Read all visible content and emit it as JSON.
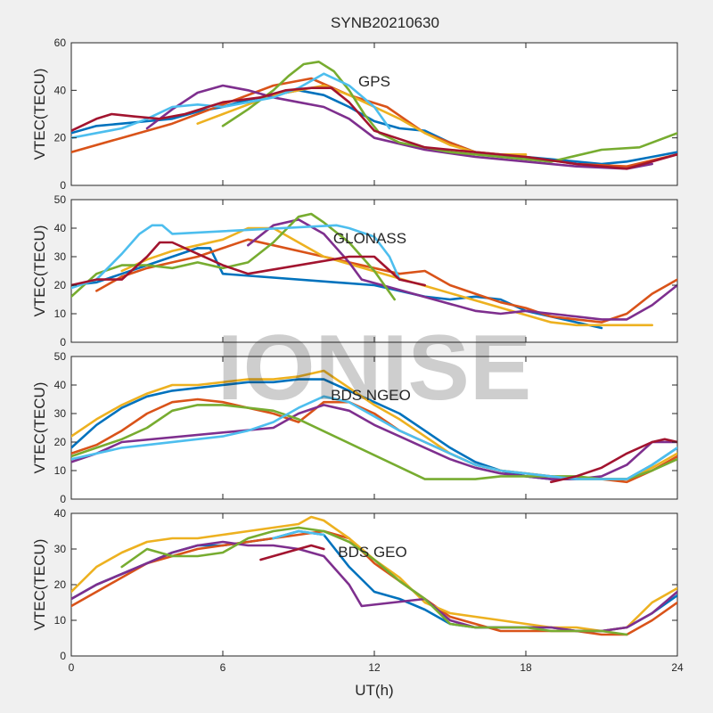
{
  "title": "SYNB20210630",
  "watermark": "IONISE",
  "xlabel": "UT(h)",
  "xticks": [
    "0",
    "6",
    "12",
    "18",
    "24"
  ],
  "colors": [
    "#0072BD",
    "#D95319",
    "#EDB120",
    "#7E2F8E",
    "#77AC30",
    "#4DBEEE",
    "#A2142F"
  ],
  "chart_data": [
    {
      "type": "line",
      "label": "GPS",
      "ylabel": "VTEC(TECU)",
      "xlim": [
        0,
        24
      ],
      "ylim": [
        0,
        60
      ],
      "yticks": [
        "0",
        "20",
        "40",
        "60"
      ],
      "grid": false,
      "series": [
        {
          "x": [
            0,
            1,
            2,
            3,
            4,
            5,
            6,
            7,
            8,
            9,
            10,
            11,
            12,
            13,
            14,
            15,
            16,
            17,
            18,
            19,
            20,
            21,
            22,
            23,
            24
          ],
          "y": [
            22,
            25,
            26,
            27,
            28,
            31,
            33,
            36,
            38,
            40,
            38,
            33,
            27,
            24,
            23,
            18,
            14,
            12,
            12,
            11,
            10,
            9,
            10,
            12,
            14
          ]
        },
        {
          "x": [
            0,
            2,
            4,
            6,
            8,
            9.5,
            11,
            12.5,
            14,
            16,
            18,
            20,
            22,
            24
          ],
          "y": [
            14,
            20,
            26,
            34,
            42,
            45,
            38,
            33,
            22,
            14,
            12,
            9,
            8,
            13
          ]
        },
        {
          "x": [
            5,
            6,
            7,
            8,
            9,
            10,
            11,
            12,
            13,
            14,
            15,
            16,
            17,
            18
          ],
          "y": [
            26,
            30,
            34,
            38,
            40,
            42,
            38,
            33,
            28,
            22,
            17,
            14,
            13,
            13
          ]
        },
        {
          "x": [
            3,
            4,
            5,
            6,
            7,
            8,
            9,
            10,
            11,
            12,
            14,
            16,
            18,
            20,
            22,
            23
          ],
          "y": [
            24,
            32,
            39,
            42,
            40,
            37,
            35,
            33,
            28,
            20,
            15,
            12,
            10,
            8,
            7,
            9
          ]
        },
        {
          "x": [
            6,
            7,
            8,
            8.6,
            9.2,
            9.8,
            10.4,
            11,
            11.6,
            12.2,
            13,
            15,
            17,
            19,
            21,
            22.5,
            24
          ],
          "y": [
            25,
            32,
            40,
            46,
            51,
            52,
            48,
            40,
            30,
            22,
            18,
            14,
            12,
            10,
            15,
            16,
            22
          ]
        },
        {
          "x": [
            0,
            1,
            2,
            3,
            4,
            5,
            6,
            7,
            8,
            9,
            10,
            11,
            12,
            12.6
          ],
          "y": [
            20,
            22,
            24,
            28,
            33,
            34,
            33,
            35,
            37,
            41,
            47,
            42,
            33,
            24
          ]
        },
        {
          "x": [
            0,
            1,
            1.6,
            2.5,
            3.5,
            4.5,
            6,
            7.5,
            8.5,
            9.5,
            10.3,
            11,
            12,
            14,
            16,
            18,
            20,
            22,
            24
          ],
          "y": [
            23,
            28,
            30,
            29,
            28,
            30,
            35,
            37,
            40,
            41,
            41,
            35,
            23,
            16,
            14,
            12,
            9,
            7,
            13
          ]
        }
      ]
    },
    {
      "type": "line",
      "label": "GLONASS",
      "ylabel": "VTEC(TECU)",
      "xlim": [
        0,
        24
      ],
      "ylim": [
        0,
        50
      ],
      "yticks": [
        "0",
        "10",
        "20",
        "30",
        "40",
        "50"
      ],
      "grid": false,
      "series": [
        {
          "x": [
            0,
            1,
            2,
            3,
            4,
            5,
            5.5,
            6,
            12,
            13,
            14,
            15,
            16,
            17,
            18,
            19,
            20,
            21
          ],
          "y": [
            20,
            21,
            24,
            27,
            30,
            33,
            33,
            24,
            20,
            18,
            16,
            15,
            16,
            15,
            11,
            9,
            7,
            5
          ]
        },
        {
          "x": [
            1,
            2,
            3,
            4,
            5,
            6,
            7,
            13,
            14,
            15,
            16,
            17,
            18,
            19,
            20,
            21,
            22,
            23,
            24
          ],
          "y": [
            18,
            23,
            26,
            28,
            30,
            33,
            36,
            24,
            25,
            20,
            17,
            14,
            12,
            9,
            8,
            7,
            10,
            17,
            22
          ]
        },
        {
          "x": [
            2,
            3,
            4,
            5,
            6,
            7,
            8,
            9,
            10,
            19,
            20,
            21,
            22,
            23
          ],
          "y": [
            25,
            29,
            32,
            34,
            36,
            40,
            40,
            35,
            30,
            7,
            6,
            6,
            6,
            6
          ]
        },
        {
          "x": [
            7,
            8,
            9,
            10,
            11,
            11.5,
            16,
            17,
            18,
            19,
            20,
            21,
            22,
            23,
            24
          ],
          "y": [
            34,
            41,
            43,
            38,
            28,
            22,
            11,
            10,
            11,
            10,
            9,
            8,
            8,
            13,
            20
          ]
        },
        {
          "x": [
            0,
            1,
            2,
            3,
            4,
            5,
            6,
            7,
            8,
            9,
            9.5,
            10,
            11,
            12,
            12.8
          ],
          "y": [
            16,
            24,
            27,
            27,
            26,
            28,
            26,
            28,
            35,
            44,
            45,
            42,
            35,
            25,
            15
          ]
        },
        {
          "x": [
            0,
            1,
            2,
            2.7,
            3.2,
            3.6,
            4,
            10.5,
            11,
            12,
            12.6,
            13
          ],
          "y": [
            19,
            22,
            31,
            38,
            41,
            41,
            38,
            41,
            40,
            37,
            30,
            22
          ]
        },
        {
          "x": [
            0,
            1,
            2,
            3,
            3.5,
            4,
            5,
            6,
            7,
            11,
            12,
            13,
            14
          ],
          "y": [
            20,
            22,
            22,
            30,
            35,
            35,
            31,
            27,
            24,
            30,
            30,
            22,
            20
          ]
        }
      ]
    },
    {
      "type": "line",
      "label": "BDS NGEO",
      "ylabel": "VTEC(TECU)",
      "xlim": [
        0,
        24
      ],
      "ylim": [
        0,
        50
      ],
      "yticks": [
        "0",
        "10",
        "20",
        "30",
        "40",
        "50"
      ],
      "grid": false,
      "series": [
        {
          "x": [
            0,
            1,
            2,
            3,
            4,
            5,
            6,
            7,
            8,
            9,
            10,
            11,
            12,
            13,
            14,
            15,
            16,
            17,
            18,
            19,
            20,
            21,
            22,
            23,
            24
          ],
          "y": [
            18,
            26,
            32,
            36,
            38,
            39,
            40,
            41,
            41,
            42,
            42,
            38,
            34,
            30,
            24,
            18,
            13,
            10,
            8,
            7,
            7,
            7,
            7,
            12,
            18
          ]
        },
        {
          "x": [
            0,
            1,
            2,
            3,
            4,
            5,
            6,
            7,
            8,
            9,
            10,
            11,
            12,
            13,
            14,
            15,
            16,
            17,
            18,
            19,
            20,
            21,
            22,
            23,
            24
          ],
          "y": [
            16,
            19,
            24,
            30,
            34,
            35,
            34,
            32,
            30,
            27,
            34,
            34,
            30,
            24,
            20,
            16,
            12,
            10,
            9,
            8,
            7,
            7,
            6,
            10,
            15
          ]
        },
        {
          "x": [
            0,
            1,
            2,
            3,
            4,
            5,
            6,
            7,
            8,
            9,
            10,
            11,
            12,
            13,
            14,
            15,
            16,
            17,
            18,
            19,
            20,
            21,
            22,
            23,
            24
          ],
          "y": [
            22,
            28,
            33,
            37,
            40,
            40,
            41,
            42,
            42,
            43,
            45,
            39,
            33,
            28,
            22,
            16,
            12,
            10,
            9,
            8,
            7,
            7,
            7,
            11,
            16
          ]
        },
        {
          "x": [
            0,
            1,
            2,
            8,
            9,
            10,
            11,
            12,
            13,
            14,
            15,
            16,
            17,
            18,
            19,
            20,
            21,
            22,
            23,
            24
          ],
          "y": [
            13,
            16,
            20,
            25,
            30,
            33,
            31,
            26,
            22,
            18,
            14,
            11,
            9,
            8,
            7,
            7,
            8,
            12,
            20,
            20
          ]
        },
        {
          "x": [
            0,
            1,
            2,
            3,
            4,
            5,
            6,
            7,
            8,
            9,
            14,
            15,
            16,
            17,
            18,
            19,
            20,
            21,
            22,
            23,
            24
          ],
          "y": [
            15,
            18,
            21,
            25,
            31,
            33,
            33,
            32,
            31,
            28,
            7,
            7,
            7,
            8,
            8,
            8,
            8,
            7,
            7,
            10,
            14
          ]
        },
        {
          "x": [
            0,
            1,
            2,
            6,
            7,
            8,
            9,
            10,
            11,
            12,
            13,
            14,
            15,
            16,
            17,
            18,
            19,
            20,
            21,
            22,
            23,
            24
          ],
          "y": [
            14,
            16,
            18,
            22,
            24,
            27,
            32,
            36,
            34,
            29,
            24,
            20,
            16,
            12,
            10,
            9,
            8,
            7,
            7,
            7,
            12,
            18
          ]
        },
        {
          "x": [
            19,
            20,
            21,
            22,
            23,
            23.5,
            24
          ],
          "y": [
            6,
            8,
            11,
            16,
            20,
            21,
            20
          ]
        }
      ]
    },
    {
      "type": "line",
      "label": "BDS GEO",
      "ylabel": "VTEC(TECU)",
      "xlim": [
        0,
        24
      ],
      "ylim": [
        0,
        40
      ],
      "yticks": [
        "0",
        "10",
        "20",
        "30",
        "40"
      ],
      "grid": false,
      "series": [
        {
          "x": [
            0,
            1,
            2,
            3,
            4,
            5,
            6,
            7,
            8,
            9,
            10,
            11,
            12,
            13,
            14,
            15,
            16,
            17,
            18,
            19,
            20,
            21,
            22,
            23,
            24
          ],
          "y": [
            16,
            20,
            23,
            26,
            29,
            31,
            31,
            32,
            33,
            35,
            34,
            25,
            18,
            16,
            13,
            9,
            8,
            8,
            8,
            8,
            7,
            7,
            8,
            12,
            17
          ]
        },
        {
          "x": [
            0,
            1,
            2,
            3,
            4,
            5,
            6,
            7,
            8,
            9,
            10,
            11,
            12,
            13,
            14,
            15,
            16,
            17,
            18,
            19,
            20,
            21,
            22,
            23,
            24
          ],
          "y": [
            14,
            18,
            22,
            26,
            28,
            30,
            31,
            32,
            33,
            34,
            35,
            33,
            26,
            21,
            16,
            11,
            9,
            7,
            7,
            7,
            7,
            6,
            6,
            10,
            15
          ]
        },
        {
          "x": [
            0,
            1,
            2,
            3,
            4,
            5,
            6,
            7,
            8,
            9,
            9.5,
            10,
            11,
            12,
            13,
            14,
            15,
            16,
            17,
            18,
            19,
            20,
            21,
            22,
            23,
            24
          ],
          "y": [
            18,
            25,
            29,
            32,
            33,
            33,
            34,
            35,
            36,
            37,
            39,
            38,
            33,
            27,
            22,
            15,
            12,
            11,
            10,
            9,
            8,
            8,
            7,
            8,
            15,
            19
          ]
        },
        {
          "x": [
            0,
            1,
            2,
            3,
            4,
            5,
            6,
            7,
            8,
            9,
            10,
            11,
            11.5,
            14,
            15,
            16,
            17,
            18,
            19,
            20,
            21,
            22,
            23,
            24
          ],
          "y": [
            16,
            20,
            23,
            26,
            29,
            31,
            32,
            31,
            31,
            30,
            28,
            20,
            14,
            16,
            10,
            8,
            8,
            8,
            8,
            7,
            7,
            8,
            12,
            18
          ]
        },
        {
          "x": [
            2,
            3,
            4,
            5,
            6,
            7,
            8,
            9,
            10,
            11,
            12,
            13,
            14,
            15,
            16,
            17,
            18,
            19,
            20,
            21,
            22
          ],
          "y": [
            25,
            30,
            28,
            28,
            29,
            33,
            35,
            36,
            35,
            32,
            27,
            21,
            16,
            9,
            8,
            8,
            8,
            7,
            7,
            7,
            6
          ]
        },
        {
          "x": [
            8,
            9,
            10
          ],
          "y": [
            33,
            35,
            34
          ]
        },
        {
          "x": [
            7.5,
            8.5,
            9.5,
            10
          ],
          "y": [
            27,
            29,
            31,
            30
          ]
        }
      ]
    }
  ]
}
